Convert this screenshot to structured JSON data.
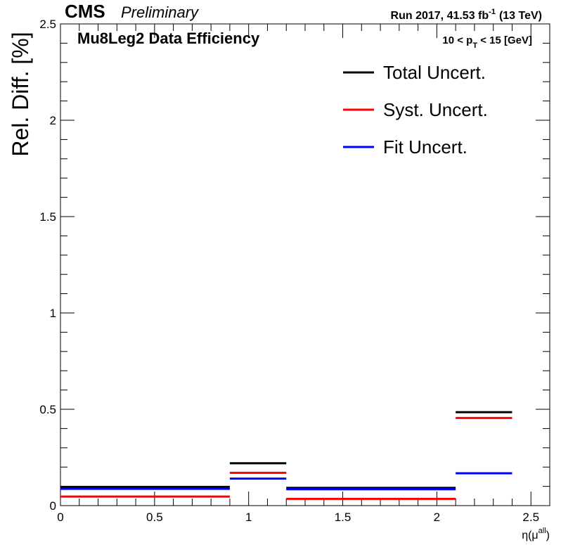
{
  "header": {
    "experiment": "CMS",
    "status": "Preliminary",
    "lumi_text": "Run 2017,  41.53 fb",
    "lumi_sup": "-1",
    "energy": "(13 TeV)"
  },
  "panel": {
    "title": "Mu8Leg2 Data Efficiency",
    "cut_prefix": "10 < p",
    "cut_sub": "T",
    "cut_suffix": " < 15 [GeV]"
  },
  "chart_data": {
    "type": "step",
    "title": "Mu8Leg2 Data Efficiency",
    "ylabel": "Rel. Diff. [%]",
    "xlabel_main": "η(μ",
    "xlabel_sup": "all",
    "xlabel_end": ")",
    "xlim": [
      0,
      2.6
    ],
    "ylim": [
      0,
      2.5
    ],
    "xticks": [
      0,
      0.5,
      1,
      1.5,
      2,
      2.5
    ],
    "xtick_labels": [
      "0",
      "0.5",
      "1",
      "1.5",
      "2",
      "2.5"
    ],
    "yticks": [
      0,
      0.5,
      1,
      1.5,
      2,
      2.5
    ],
    "ytick_labels": [
      "0",
      "0.5",
      "1",
      "1.5",
      "2",
      "2.5"
    ],
    "bin_edges": [
      0,
      0.9,
      1.2,
      2.1,
      2.4
    ],
    "series": [
      {
        "name": "Total Uncert.",
        "color": "#000000",
        "values": [
          0.097,
          0.22,
          0.092,
          0.485
        ]
      },
      {
        "name": "Syst. Uncert.",
        "color": "#ff0000",
        "values": [
          0.047,
          0.17,
          0.035,
          0.455
        ]
      },
      {
        "name": "Fit Uncert.",
        "color": "#0000ff",
        "values": [
          0.087,
          0.14,
          0.085,
          0.168
        ]
      }
    ],
    "legend_position": "top-right"
  }
}
